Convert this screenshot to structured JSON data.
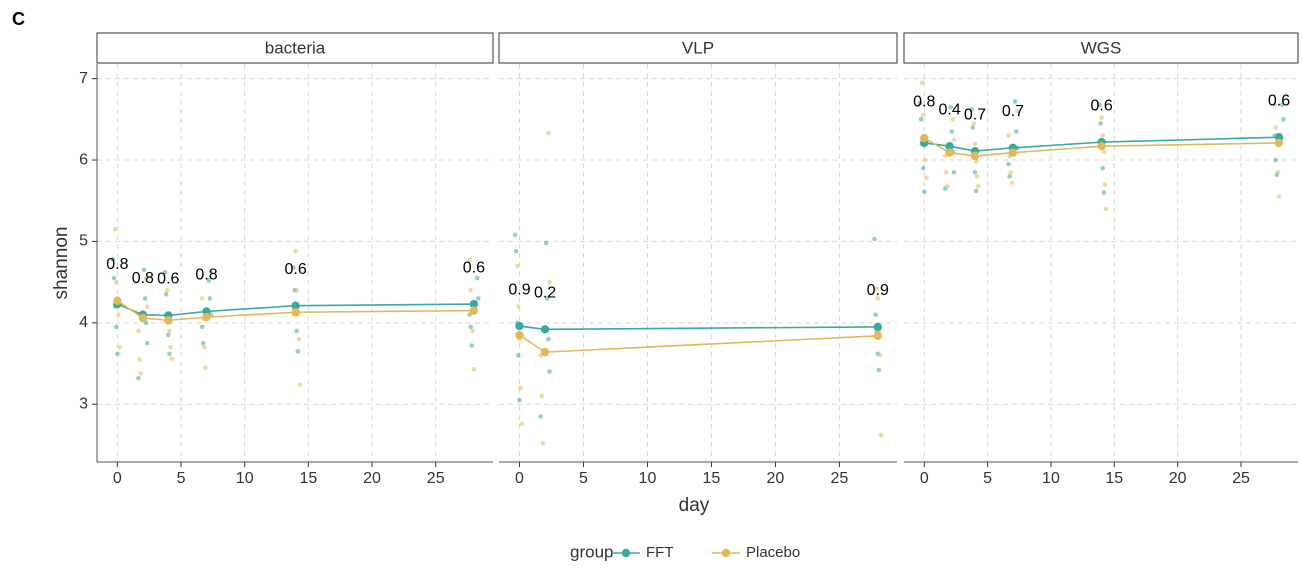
{
  "figure": {
    "panel_label": "C",
    "ylabel": "shannon",
    "xlabel": "day",
    "legend_title": "group"
  },
  "chart_data": [
    {
      "type": "line",
      "title": "bacteria",
      "x": [
        0,
        2,
        4,
        7,
        14,
        28
      ],
      "xlim": [
        -1.6,
        29.5
      ],
      "xticks": [
        0,
        5,
        10,
        15,
        20,
        25
      ],
      "ylim": [
        2.29,
        7.18
      ],
      "yticks": [
        3,
        4,
        5,
        6,
        7
      ],
      "grid": true,
      "p_values": [
        "0.8",
        "0.8",
        "0.6",
        "0.8",
        "0.6",
        "0.6"
      ],
      "series": [
        {
          "name": "FFT",
          "color": "#3aaa9e",
          "values": [
            4.23,
            4.1,
            4.09,
            4.14,
            4.21,
            4.23
          ],
          "points": [
            [
              4.78,
              4.55,
              4.2,
              3.95,
              3.62
            ],
            [
              4.65,
              4.3,
              4.0,
              3.75,
              3.32
            ],
            [
              4.62,
              4.35,
              4.05,
              3.85,
              3.62
            ],
            [
              4.52,
              4.3,
              4.1,
              3.95,
              3.75
            ],
            [
              4.68,
              4.4,
              4.15,
              3.9,
              3.65
            ],
            [
              4.55,
              4.3,
              4.1,
              3.95,
              3.72
            ]
          ]
        },
        {
          "name": "Placebo",
          "color": "#e2b95a",
          "values": [
            4.27,
            4.06,
            4.03,
            4.07,
            4.13,
            4.15
          ],
          "points": [
            [
              5.15,
              4.5,
              4.3,
              4.1,
              3.7
            ],
            [
              4.55,
              4.2,
              3.9,
              3.55,
              3.38
            ],
            [
              4.4,
              4.1,
              3.9,
              3.7,
              3.56
            ],
            [
              4.62,
              4.3,
              4.05,
              3.7,
              3.45
            ],
            [
              4.88,
              4.4,
              4.1,
              3.8,
              3.24
            ],
            [
              4.77,
              4.4,
              4.15,
              3.9,
              3.43
            ]
          ]
        }
      ]
    },
    {
      "type": "line",
      "title": "VLP",
      "x": [
        0,
        2,
        28
      ],
      "xlim": [
        -1.6,
        29.5
      ],
      "xticks": [
        0,
        5,
        10,
        15,
        20,
        25
      ],
      "p_values": [
        "0.9",
        "0.2",
        "0.9"
      ],
      "series": [
        {
          "name": "FFT",
          "color": "#3aaa9e",
          "values": [
            3.96,
            3.92,
            3.95
          ],
          "points": [
            [
              5.08,
              4.88,
              4.0,
              3.6,
              3.05
            ],
            [
              4.98,
              4.3,
              3.8,
              3.4,
              2.85
            ],
            [
              5.03,
              4.1,
              3.9,
              3.62,
              3.42
            ]
          ]
        },
        {
          "name": "Placebo",
          "color": "#e2b95a",
          "values": [
            3.85,
            3.64,
            3.84
          ],
          "points": [
            [
              4.7,
              4.2,
              3.8,
              3.2,
              2.76
            ],
            [
              6.33,
              4.5,
              3.6,
              3.1,
              2.52
            ],
            [
              4.42,
              4.3,
              3.9,
              3.6,
              2.62
            ]
          ]
        }
      ]
    },
    {
      "type": "line",
      "title": "WGS",
      "x": [
        0,
        2,
        4,
        7,
        14,
        28
      ],
      "xlim": [
        -1.6,
        29.5
      ],
      "xticks": [
        0,
        5,
        10,
        15,
        20,
        25
      ],
      "p_values": [
        "0.8",
        "0.4",
        "0.7",
        "0.7",
        "0.6",
        "0.6"
      ],
      "series": [
        {
          "name": "FFT",
          "color": "#3aaa9e",
          "values": [
            6.21,
            6.17,
            6.11,
            6.15,
            6.22,
            6.28
          ],
          "points": [
            [
              6.7,
              6.5,
              6.2,
              5.9,
              5.61
            ],
            [
              6.65,
              6.35,
              6.1,
              5.85,
              5.65
            ],
            [
              6.62,
              6.4,
              6.1,
              5.85,
              5.62
            ],
            [
              6.72,
              6.35,
              6.15,
              5.95,
              5.8
            ],
            [
              6.68,
              6.45,
              6.2,
              5.9,
              5.6
            ],
            [
              6.68,
              6.5,
              6.3,
              6.0,
              5.82
            ]
          ]
        },
        {
          "name": "Placebo",
          "color": "#e2b95a",
          "values": [
            6.27,
            6.09,
            6.05,
            6.09,
            6.17,
            6.21
          ],
          "points": [
            [
              6.95,
              6.55,
              6.3,
              6.0,
              5.78
            ],
            [
              6.5,
              6.25,
              6.05,
              5.85,
              5.68
            ],
            [
              6.45,
              6.2,
              5.98,
              5.8,
              5.68
            ],
            [
              6.6,
              6.3,
              6.05,
              5.85,
              5.72
            ],
            [
              6.52,
              6.3,
              6.1,
              5.7,
              5.4
            ],
            [
              6.68,
              6.4,
              6.2,
              5.85,
              5.55
            ]
          ]
        }
      ]
    }
  ]
}
